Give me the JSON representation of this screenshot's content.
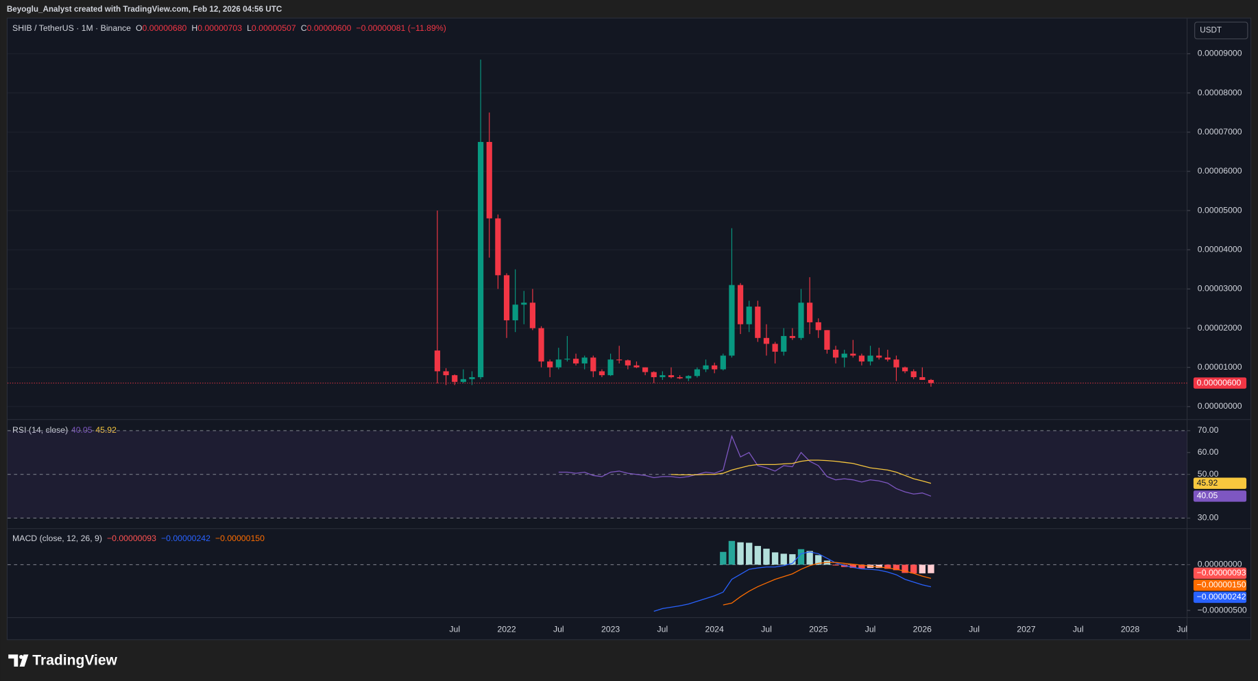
{
  "header": {
    "attribution": "Beyoglu_Analyst created with TradingView.com, Feb 12, 2026 04:56 UTC",
    "symbol": "SHIB / TetherUS · 1M · Binance",
    "ohlc": [
      {
        "key": "O",
        "value": "0.00000680"
      },
      {
        "key": "H",
        "value": "0.00000703"
      },
      {
        "key": "L",
        "value": "0.00000507"
      },
      {
        "key": "C",
        "value": "0.00000600"
      }
    ],
    "change": "−0.00000081 (−11.89%)",
    "currency": "USDT"
  },
  "x_axis": {
    "labels": [
      "Jul",
      "2022",
      "Jul",
      "2023",
      "Jul",
      "2024",
      "Jul",
      "2025",
      "Jul",
      "2026",
      "Jul",
      "2027",
      "Jul",
      "2028",
      "Jul"
    ]
  },
  "brand": "TradingView",
  "chart_data": [
    {
      "type": "candlestick",
      "color_up": "#089981",
      "color_down": "#f23645",
      "last_label": "0.00000600",
      "ylim": [
        -3.3e-06,
        9.9e-05
      ],
      "yticks": [
        {
          "value": 0,
          "label": "0.00000000"
        },
        {
          "value": 1e-05,
          "label": "0.00001000"
        },
        {
          "value": 2e-05,
          "label": "0.00002000"
        },
        {
          "value": 3e-05,
          "label": "0.00003000"
        },
        {
          "value": 4e-05,
          "label": "0.00004000"
        },
        {
          "value": 5e-05,
          "label": "0.00005000"
        },
        {
          "value": 6e-05,
          "label": "0.00006000"
        },
        {
          "value": 7e-05,
          "label": "0.00007000"
        },
        {
          "value": 8e-05,
          "label": "0.00008000"
        },
        {
          "value": 9e-05,
          "label": "0.00009000"
        }
      ],
      "open": [
        1.43e-05,
        9e-06,
        8e-06,
        6.3e-06,
        7e-06,
        7.5e-06,
        6.75e-05,
        4.8e-05,
        3.35e-05,
        2.2e-05,
        2.6e-05,
        2.65e-05,
        2e-05,
        1.15e-05,
        1e-05,
        1.2e-05,
        1.22e-05,
        1.1e-05,
        1.25e-05,
        9e-06,
        8e-06,
        1.2e-05,
        1.18e-05,
        1.05e-05,
        1e-05,
        8.8e-06,
        7.5e-06,
        8e-06,
        7.5e-06,
        7.2e-06,
        7.8e-06,
        9.5e-06,
        1.05e-05,
        9.5e-06,
        1.3e-05,
        3.1e-05,
        2.1e-05,
        2.55e-05,
        1.75e-05,
        1.6e-05,
        1.4e-05,
        1.8e-05,
        1.75e-05,
        2.65e-05,
        2.15e-05,
        1.95e-05,
        1.45e-05,
        1.25e-05,
        1.35e-05,
        1.3e-05,
        1.15e-05,
        1.3e-05,
        1.25e-05,
        1.2e-05,
        1e-05,
        9e-06,
        7.5e-06,
        6.8e-06
      ],
      "high": [
        5e-05,
        9.8e-06,
        8.2e-06,
        9.5e-06,
        9e-06,
        8.85e-05,
        7.5e-05,
        4.9e-05,
        3.4e-05,
        3.5e-05,
        2.95e-05,
        3e-05,
        2.05e-05,
        1.2e-05,
        1.5e-05,
        1.8e-05,
        1.35e-05,
        1.3e-05,
        1.3e-05,
        9.5e-06,
        1.35e-05,
        1.55e-05,
        1.2e-05,
        1.15e-05,
        1e-05,
        9e-06,
        9e-06,
        1e-05,
        8e-06,
        8e-06,
        1e-05,
        1.2e-05,
        1.12e-05,
        1.35e-05,
        4.55e-05,
        3.15e-05,
        2.7e-05,
        2.7e-05,
        2.1e-05,
        1.65e-05,
        2e-05,
        2e-05,
        3e-05,
        3.3e-05,
        2.25e-05,
        1.95e-05,
        1.55e-05,
        1.45e-05,
        1.7e-05,
        1.35e-05,
        1.55e-05,
        1.5e-05,
        1.45e-05,
        1.3e-05,
        1.02e-05,
        9.5e-06,
        1e-05,
        7.03e-06
      ],
      "low": [
        5.9e-06,
        5.5e-06,
        5.5e-06,
        6e-06,
        5.5e-06,
        7e-06,
        3.8e-05,
        3e-05,
        1.75e-05,
        1.9e-05,
        2.1e-05,
        1.95e-05,
        1e-05,
        7.5e-06,
        9.5e-06,
        1.15e-05,
        1.05e-05,
        9.5e-06,
        7.5e-06,
        7.5e-06,
        7.8e-06,
        1.1e-05,
        9.5e-06,
        9.8e-06,
        8e-06,
        6e-06,
        6.8e-06,
        7.2e-06,
        7e-06,
        6.5e-06,
        7.4e-06,
        8.8e-06,
        8.5e-06,
        9.2e-06,
        1.25e-05,
        1.85e-05,
        1.9e-05,
        1.65e-05,
        1.3e-05,
        1.1e-05,
        1.3e-05,
        1.7e-05,
        1.7e-05,
        1.85e-05,
        1.75e-05,
        1.35e-05,
        1.1e-05,
        1e-05,
        1.25e-05,
        1.05e-05,
        1.05e-05,
        1.2e-05,
        1.15e-05,
        6.5e-06,
        8.5e-06,
        7e-06,
        6.8e-06,
        5.07e-06
      ],
      "close": [
        9e-06,
        8e-06,
        6.3e-06,
        7e-06,
        7.5e-06,
        6.75e-05,
        4.8e-05,
        3.35e-05,
        2.2e-05,
        2.6e-05,
        2.65e-05,
        2e-05,
        1.15e-05,
        1e-05,
        1.2e-05,
        1.22e-05,
        1.1e-05,
        1.25e-05,
        9e-06,
        8e-06,
        1.2e-05,
        1.18e-05,
        1.05e-05,
        1e-05,
        8.8e-06,
        7.5e-06,
        8e-06,
        7.5e-06,
        7.2e-06,
        7.8e-06,
        9.5e-06,
        1.05e-05,
        9.5e-06,
        1.3e-05,
        3.1e-05,
        2.1e-05,
        2.55e-05,
        1.75e-05,
        1.6e-05,
        1.4e-05,
        1.8e-05,
        1.75e-05,
        2.65e-05,
        2.15e-05,
        1.95e-05,
        1.45e-05,
        1.25e-05,
        1.35e-05,
        1.3e-05,
        1.15e-05,
        1.3e-05,
        1.25e-05,
        1.2e-05,
        1e-05,
        9e-06,
        7.5e-06,
        6.8e-06,
        6e-06
      ]
    },
    {
      "type": "line",
      "title": "RSI (14, close)",
      "ylim": [
        25.2,
        75.1
      ],
      "yticks": [
        {
          "value": 70,
          "label": "70.00"
        },
        {
          "value": 60,
          "label": "60.00"
        },
        {
          "value": 50,
          "label": "50.00"
        },
        {
          "value": 30,
          "label": "30.00"
        }
      ],
      "levels": [
        70,
        50,
        30
      ],
      "band_color": "#7e57c2",
      "series": [
        {
          "color": "#7e57c2",
          "values": [
            null,
            null,
            null,
            null,
            null,
            null,
            null,
            null,
            null,
            null,
            null,
            null,
            null,
            null,
            51,
            51,
            50.5,
            51,
            49.5,
            49,
            51,
            51.5,
            50.5,
            50,
            49.5,
            48.5,
            49,
            49,
            48.5,
            49,
            50,
            51,
            50.5,
            52,
            67.5,
            58,
            60,
            54,
            53,
            51.5,
            54,
            53.5,
            60,
            56,
            54,
            49,
            47.5,
            48,
            47.5,
            46.5,
            47.5,
            47,
            46,
            43.5,
            42,
            41,
            41.5,
            40.05
          ]
        },
        {
          "color": "#f7c73e",
          "values": [
            null,
            null,
            null,
            null,
            null,
            null,
            null,
            null,
            null,
            null,
            null,
            null,
            null,
            null,
            null,
            null,
            null,
            null,
            null,
            null,
            null,
            null,
            null,
            null,
            null,
            null,
            null,
            50,
            49.8,
            49.8,
            49.8,
            50,
            50,
            50.5,
            52,
            53,
            54,
            54.5,
            54.5,
            54.5,
            54.8,
            55,
            56,
            56.5,
            56.5,
            56.3,
            56,
            55.5,
            55,
            54,
            53,
            52.5,
            52,
            51,
            49.5,
            48,
            47,
            45.92
          ]
        }
      ]
    },
    {
      "type": "macd",
      "title": "MACD (close, 12, 26, 9)",
      "ylim": [
        -5.79e-06,
        3.95e-06
      ],
      "yticks": [
        {
          "value": 0,
          "label": "0.00000000"
        },
        {
          "value": -5e-06,
          "label": "−0.00000500"
        }
      ],
      "histogram": {
        "colors": [
          "#26a69a",
          "#b2dfdb",
          "#ffcdd2",
          "#ff5252"
        ],
        "last_label": "−0.00000093",
        "values": [
          null,
          null,
          null,
          null,
          null,
          null,
          null,
          null,
          null,
          null,
          null,
          null,
          null,
          null,
          null,
          null,
          null,
          null,
          null,
          null,
          null,
          null,
          null,
          null,
          null,
          null,
          null,
          null,
          null,
          null,
          null,
          null,
          null,
          1.4e-06,
          2.6e-06,
          2.45e-06,
          2.4e-06,
          2.05e-06,
          1.75e-06,
          1.35e-06,
          1.2e-06,
          1.15e-06,
          1.7e-06,
          1.5e-06,
          1.05e-06,
          4.5e-07,
          -5e-08,
          -2.5e-07,
          -3.5e-07,
          -4e-07,
          -3.5e-07,
          -3.5e-07,
          -4.5e-07,
          -6e-07,
          -9e-07,
          -9.5e-07,
          -9.5e-07,
          -9.3e-07
        ]
      },
      "series": [
        {
          "color": "#2962ff",
          "last_label": "−0.00000242",
          "values": [
            null,
            null,
            null,
            null,
            null,
            null,
            null,
            null,
            null,
            null,
            null,
            null,
            null,
            null,
            null,
            null,
            null,
            null,
            null,
            null,
            null,
            null,
            null,
            null,
            null,
            -5.1e-06,
            -4.8e-06,
            -4.65e-06,
            -4.5e-06,
            -4.3e-06,
            -4e-06,
            -3.7e-06,
            -3.4e-06,
            -3e-06,
            -1.6e-06,
            -1.05e-06,
            -5e-07,
            -3.5e-07,
            -2.5e-07,
            -2.5e-07,
            -1e-07,
            1.5e-07,
            1.2e-06,
            1.4e-06,
            1.2e-06,
            7e-07,
            2e-07,
            -1e-07,
            -3e-07,
            -4.5e-07,
            -5e-07,
            -6e-07,
            -8e-07,
            -1.1e-06,
            -1.6e-06,
            -1.9e-06,
            -2.2e-06,
            -2.42e-06
          ]
        },
        {
          "color": "#ff6d00",
          "last_label": "−0.00000150",
          "values": [
            null,
            null,
            null,
            null,
            null,
            null,
            null,
            null,
            null,
            null,
            null,
            null,
            null,
            null,
            null,
            null,
            null,
            null,
            null,
            null,
            null,
            null,
            null,
            null,
            null,
            null,
            null,
            null,
            null,
            null,
            null,
            null,
            null,
            -4.4e-06,
            -4.2e-06,
            -3.5e-06,
            -2.9e-06,
            -2.4e-06,
            -2e-06,
            -1.6e-06,
            -1.3e-06,
            -1e-06,
            -5e-07,
            -1e-07,
            1.5e-07,
            2.5e-07,
            2.5e-07,
            1.5e-07,
            5e-08,
            -5e-08,
            -1.5e-07,
            -2.5e-07,
            -3.5e-07,
            -5e-07,
            -7e-07,
            -9.5e-07,
            -1.25e-06,
            -1.5e-06
          ]
        }
      ]
    }
  ]
}
